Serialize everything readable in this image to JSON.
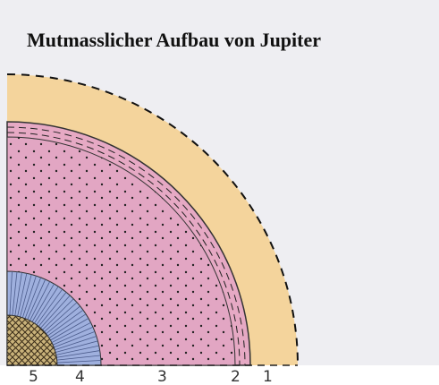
{
  "header": {
    "title": "Mutmasslicher Aufbau von Jupiter"
  },
  "layers": [
    {
      "label": "5"
    },
    {
      "label": "4"
    },
    {
      "label": "3"
    },
    {
      "label": "2"
    },
    {
      "label": "1"
    }
  ]
}
